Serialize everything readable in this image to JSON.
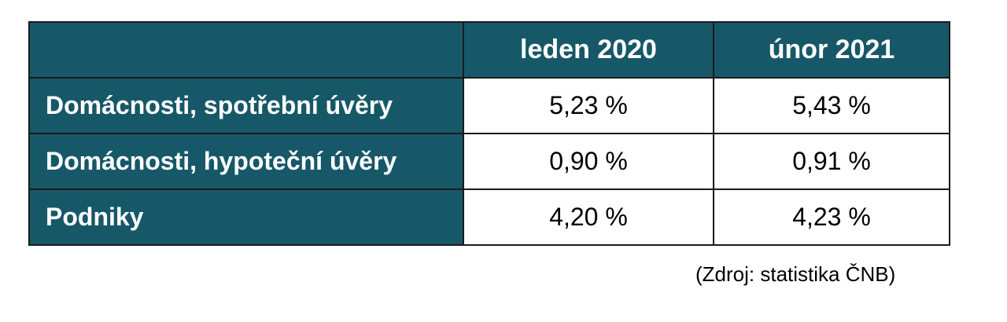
{
  "table": {
    "headers": [
      "",
      "leden 2020",
      "únor 2021"
    ],
    "rows": [
      {
        "label": "Domácnosti, spotřební úvěry",
        "values": [
          "5,23 %",
          "5,43 %"
        ]
      },
      {
        "label": "Domácnosti, hypoteční úvěry",
        "values": [
          "0,90 %",
          "0,91 %"
        ]
      },
      {
        "label": "Podniky",
        "values": [
          "4,20 %",
          "4,23 %"
        ]
      }
    ]
  },
  "source_note": "(Zdroj: statistika ČNB)",
  "colors": {
    "header_fill": "#175868",
    "header_text": "#ffffff",
    "value_text": "#000000"
  }
}
